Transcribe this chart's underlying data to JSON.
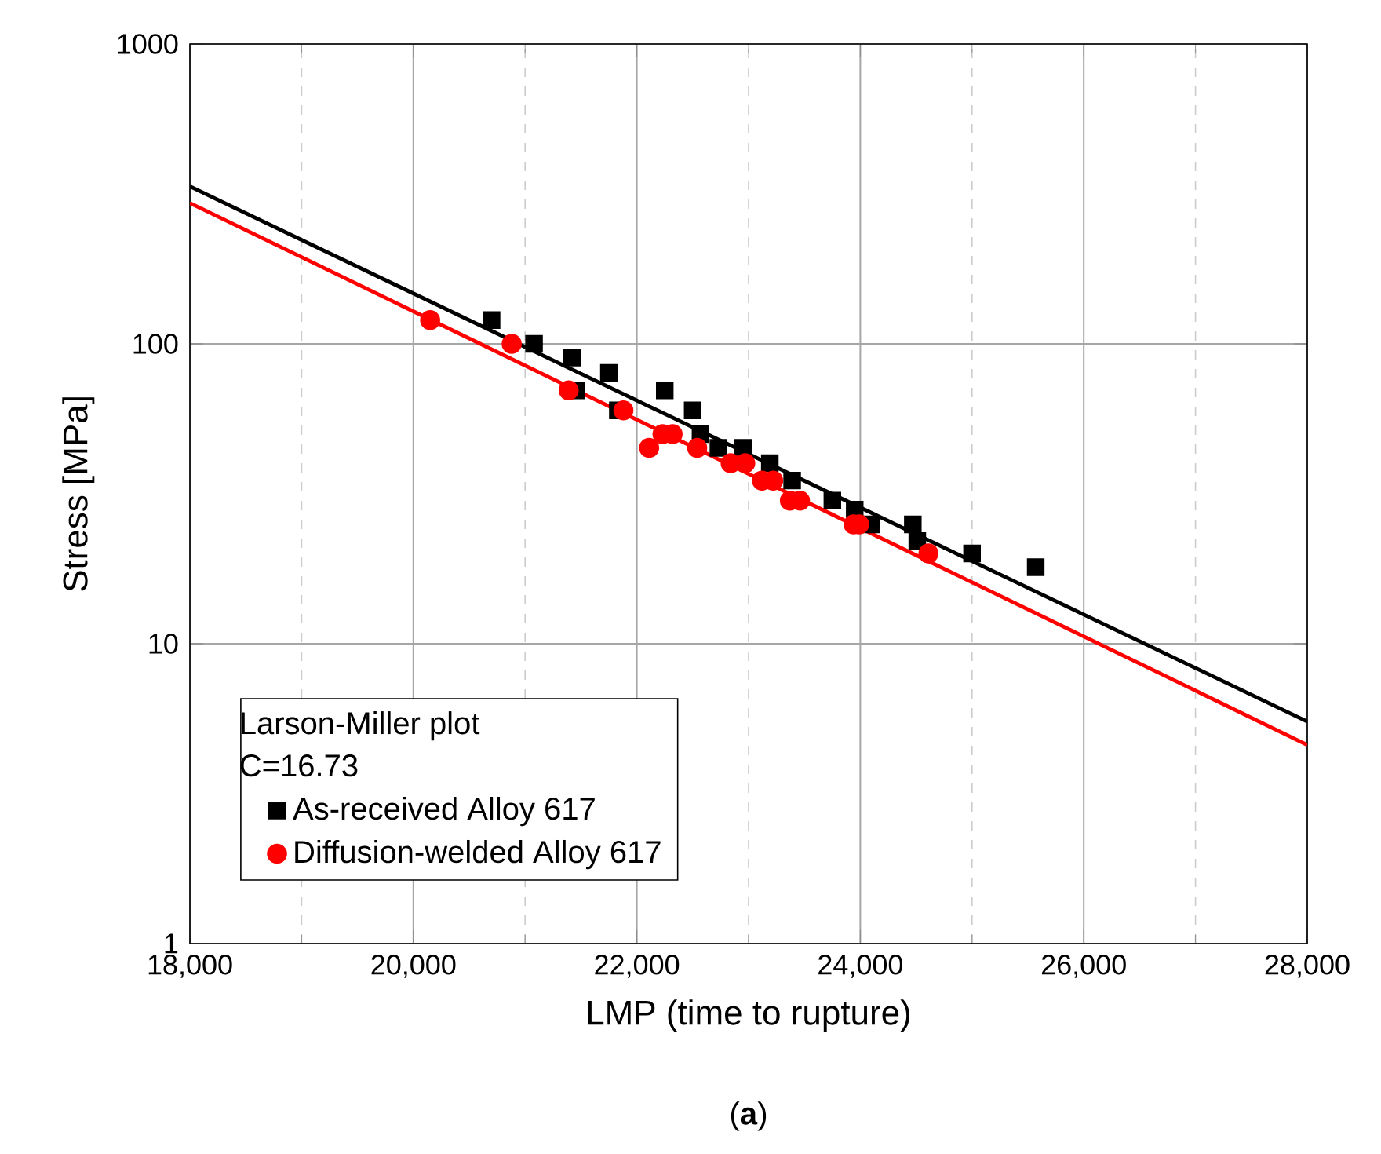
{
  "chart_data": {
    "type": "scatter",
    "xlabel": "LMP (time to rupture)",
    "ylabel": "Stress [MPa]",
    "legend_title": "Larson-Miller plot",
    "annotations": [
      "C=16.73",
      "(**a**)"
    ],
    "log": "y",
    "grid": true,
    "legend": "bottom left",
    "xlim": [
      18000,
      28000
    ],
    "ylim": [
      1,
      1000
    ],
    "xticks": [
      {
        "value": 18000,
        "label": "18,000"
      },
      {
        "value": 20000,
        "label": "20,000"
      },
      {
        "value": 22000,
        "label": "22,000"
      },
      {
        "value": 24000,
        "label": "24,000"
      },
      {
        "value": 26000,
        "label": "26,000"
      },
      {
        "value": 28000,
        "label": "28,000"
      }
    ],
    "yticks": [
      1,
      10,
      100,
      1000
    ],
    "series": [
      {
        "name": "As-received Alloy 617",
        "color": "#000000",
        "marker": "square",
        "x": [
          20700,
          21080,
          21420,
          21460,
          21750,
          21830,
          22250,
          22500,
          22570,
          22730,
          22950,
          23190,
          23390,
          23750,
          23950,
          24100,
          24470,
          24510,
          25000,
          25570
        ],
        "values": [
          120,
          100,
          90,
          70,
          80,
          60,
          70,
          60,
          50,
          45,
          45,
          40,
          35,
          30,
          28,
          25,
          25,
          22,
          20,
          18
        ]
      },
      {
        "name": "Diffusion-welded Alloy 617",
        "color": "#ff0000",
        "marker": "circle",
        "x": [
          20150,
          20880,
          21390,
          21880,
          22110,
          22230,
          22320,
          22540,
          22840,
          22970,
          23120,
          23220,
          23370,
          23460,
          23940,
          23990,
          24610
        ],
        "values": [
          120,
          100,
          70,
          60,
          45,
          50,
          50,
          45,
          40,
          40,
          35,
          35,
          30,
          30,
          25,
          25,
          20
        ]
      },
      {
        "color": "#000000",
        "type": "line",
        "marker": "none",
        "x": [
          18000,
          28000
        ],
        "values": [
          335,
          5.5
        ]
      },
      {
        "color": "#ff0000",
        "type": "line",
        "marker": "none",
        "x": [
          18000,
          28000
        ],
        "values": [
          295,
          4.6
        ]
      }
    ]
  }
}
